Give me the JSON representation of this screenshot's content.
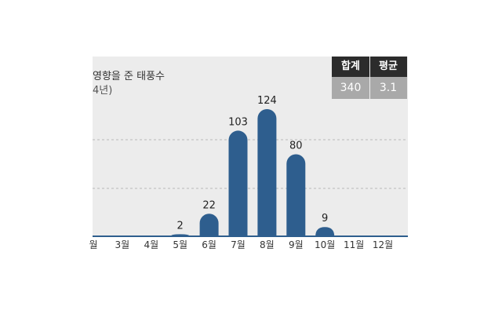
{
  "chart_data": {
    "type": "bar",
    "title": "영향을 준 태풍수",
    "subtitle": "4년)",
    "categories": [
      "월",
      "3월",
      "4월",
      "5월",
      "6월",
      "7월",
      "8월",
      "9월",
      "10월",
      "11월",
      "12월"
    ],
    "values": [
      0,
      0,
      0,
      2,
      22,
      103,
      124,
      80,
      9,
      0,
      0
    ],
    "data_labels": [
      "",
      "",
      "",
      "2",
      "22",
      "103",
      "124",
      "80",
      "9",
      "",
      ""
    ],
    "ylim": [
      0,
      124
    ],
    "grid": true,
    "colors": {
      "bar": "#2e5e8e",
      "baseline": "#2e5e8e",
      "panel": "#ececec",
      "grid": "#b8b8b8"
    }
  },
  "summary": {
    "headers": [
      "합계",
      "평균"
    ],
    "values": [
      "340",
      "3.1"
    ]
  }
}
